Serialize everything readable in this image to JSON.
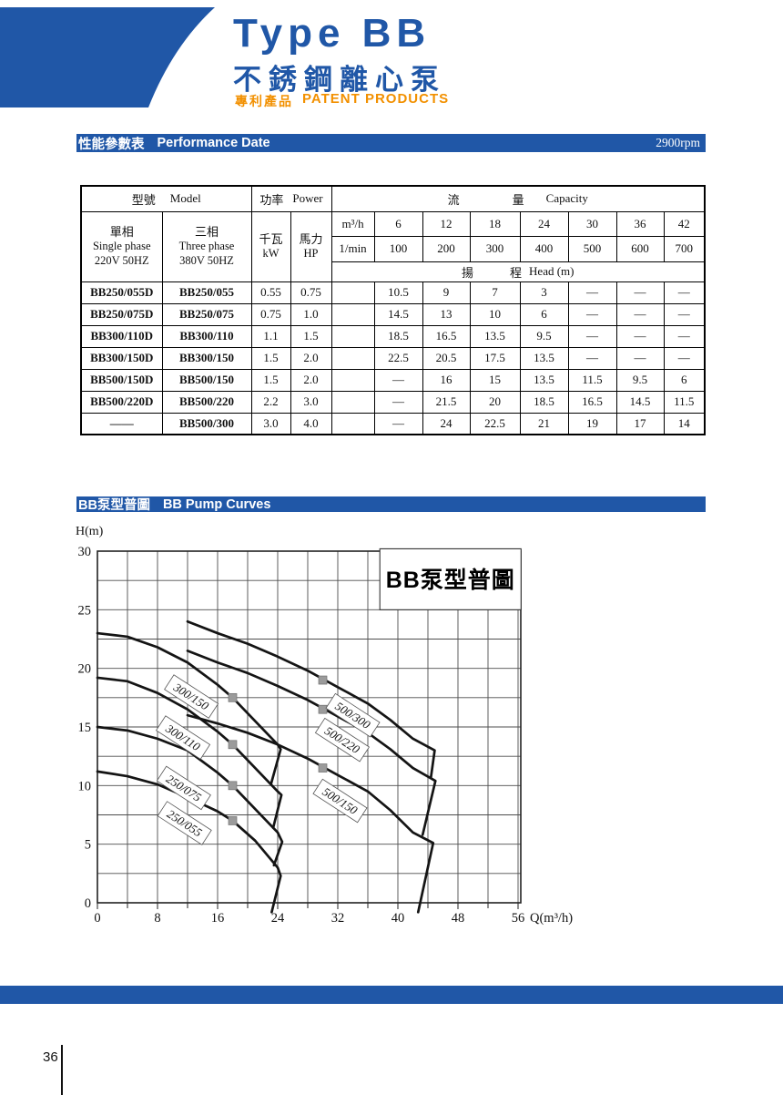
{
  "colors": {
    "blue": "#2057a7",
    "orange": "#f29000",
    "curve": "#141414",
    "grid": "#4d4d4d",
    "marker_fill": "#9b9b9b",
    "marker_edge": "#6f6f6f"
  },
  "header": {
    "title": "Type BB",
    "subtitle_cjk": "不銹鋼離心泵",
    "patent_cjk": "專利產品",
    "patent_en": "PATENT PRODUCTS"
  },
  "sections": {
    "performance": {
      "cjk": "性能參數表",
      "en": "Performance Date",
      "rpm": "2900rpm"
    },
    "curves": {
      "cjk": "BB泵型普圖",
      "en": "BB Pump Curves"
    }
  },
  "table": {
    "header": {
      "model_cjk": "型號",
      "model_en": "Model",
      "power_cjk": "功率",
      "power_en": "Power",
      "capacity_c1": "流",
      "capacity_c2": "量",
      "capacity_en": "Capacity",
      "single_phase": [
        "單相",
        "Single phase",
        "220V 50HZ"
      ],
      "three_phase": [
        "三相",
        "Three phase",
        "380V 50HZ"
      ],
      "kw": [
        "千瓦",
        "kW"
      ],
      "hp": [
        "馬力",
        "HP"
      ],
      "flow_m3h_label": "m³/h",
      "flow_lmin_label": "1/min",
      "flow_m3h": [
        "6",
        "12",
        "18",
        "24",
        "30",
        "36",
        "42"
      ],
      "flow_lmin": [
        "100",
        "200",
        "300",
        "400",
        "500",
        "600",
        "700"
      ],
      "head_c1": "揚",
      "head_c2": "程",
      "head_en": "Head (m)"
    },
    "rows": [
      {
        "single": "BB250/055D",
        "three": "BB250/055",
        "kw": "0.55",
        "hp": "0.75",
        "heads": [
          "10.5",
          "9",
          "7",
          "3",
          "—",
          "—",
          "—"
        ]
      },
      {
        "single": "BB250/075D",
        "three": "BB250/075",
        "kw": "0.75",
        "hp": "1.0",
        "heads": [
          "14.5",
          "13",
          "10",
          "6",
          "—",
          "—",
          "—"
        ]
      },
      {
        "single": "BB300/110D",
        "three": "BB300/110",
        "kw": "1.1",
        "hp": "1.5",
        "heads": [
          "18.5",
          "16.5",
          "13.5",
          "9.5",
          "—",
          "—",
          "—"
        ]
      },
      {
        "single": "BB300/150D",
        "three": "BB300/150",
        "kw": "1.5",
        "hp": "2.0",
        "heads": [
          "22.5",
          "20.5",
          "17.5",
          "13.5",
          "—",
          "—",
          "—"
        ]
      },
      {
        "single": "BB500/150D",
        "three": "BB500/150",
        "kw": "1.5",
        "hp": "2.0",
        "heads": [
          "—",
          "16",
          "15",
          "13.5",
          "11.5",
          "9.5",
          "6"
        ]
      },
      {
        "single": "BB500/220D",
        "three": "BB500/220",
        "kw": "2.2",
        "hp": "3.0",
        "heads": [
          "—",
          "21.5",
          "20",
          "18.5",
          "16.5",
          "14.5",
          "11.5"
        ]
      },
      {
        "single": "——",
        "three": "BB500/300",
        "kw": "3.0",
        "hp": "4.0",
        "heads": [
          "—",
          "24",
          "22.5",
          "21",
          "19",
          "17",
          "14"
        ]
      }
    ]
  },
  "chart_data": {
    "type": "line",
    "title": "BB泵型普圖",
    "xlabel": "Q(m³/h)",
    "ylabel": "H(m)",
    "xlim": [
      0,
      56
    ],
    "ylim": [
      0,
      30
    ],
    "x_major_ticks": [
      0,
      8,
      16,
      24,
      32,
      40,
      48,
      56
    ],
    "y_ticks": [
      0,
      5,
      10,
      15,
      20,
      25,
      30
    ],
    "x_grid_step": 4,
    "y_grid_step": 2.5,
    "grid": true,
    "legend_position": "labels-on-curves",
    "label_rotation_deg": 33,
    "series": [
      {
        "name": "250/055",
        "points": [
          [
            0,
            11.2
          ],
          [
            4,
            10.8
          ],
          [
            8,
            10.1
          ],
          [
            12,
            9
          ],
          [
            16,
            7.8
          ],
          [
            18,
            7
          ],
          [
            21,
            5.3
          ],
          [
            24,
            3
          ],
          [
            24.4,
            2.3
          ],
          [
            23.2,
            -0.8
          ]
        ],
        "marker": [
          18,
          7
        ],
        "label_pos": [
          11.6,
          6.8
        ]
      },
      {
        "name": "250/075",
        "points": [
          [
            0,
            15
          ],
          [
            4,
            14.7
          ],
          [
            8,
            14
          ],
          [
            12,
            13
          ],
          [
            16,
            11.1
          ],
          [
            18,
            10
          ],
          [
            21,
            8
          ],
          [
            24,
            6
          ],
          [
            24.6,
            5.2
          ],
          [
            23.5,
            3.2
          ]
        ],
        "marker": [
          18,
          10
        ],
        "label_pos": [
          11.5,
          9.8
        ]
      },
      {
        "name": "300/110",
        "points": [
          [
            0,
            19.2
          ],
          [
            4,
            18.9
          ],
          [
            8,
            17.9
          ],
          [
            12,
            16.5
          ],
          [
            16,
            14.6
          ],
          [
            18,
            13.5
          ],
          [
            21,
            11.5
          ],
          [
            24,
            9.5
          ],
          [
            24.5,
            9.2
          ],
          [
            23.4,
            6.4
          ]
        ],
        "marker": [
          18,
          13.5
        ],
        "label_pos": [
          11.4,
          14.1
        ]
      },
      {
        "name": "300/150",
        "points": [
          [
            0,
            23
          ],
          [
            4,
            22.7
          ],
          [
            8,
            21.8
          ],
          [
            12,
            20.5
          ],
          [
            16,
            18.6
          ],
          [
            18,
            17.5
          ],
          [
            21,
            15.5
          ],
          [
            24,
            13.5
          ],
          [
            24.4,
            13.1
          ],
          [
            23.1,
            10.1
          ]
        ],
        "marker": [
          18,
          17.5
        ],
        "label_pos": [
          12.5,
          17.6
        ]
      },
      {
        "name": "500/150",
        "points": [
          [
            12,
            16
          ],
          [
            16,
            15.3
          ],
          [
            20,
            14.5
          ],
          [
            24,
            13.5
          ],
          [
            28,
            12.3
          ],
          [
            32,
            10.9
          ],
          [
            36,
            9.5
          ],
          [
            39,
            7.9
          ],
          [
            42,
            6
          ],
          [
            44.7,
            5.1
          ],
          [
            42.7,
            -0.8
          ]
        ],
        "marker": [
          30,
          11.5
        ],
        "label_pos": [
          32.3,
          8.7
        ]
      },
      {
        "name": "500/220",
        "points": [
          [
            12,
            21.5
          ],
          [
            16,
            20.5
          ],
          [
            20,
            19.6
          ],
          [
            24,
            18.5
          ],
          [
            28,
            17.3
          ],
          [
            32,
            15.9
          ],
          [
            36,
            14.5
          ],
          [
            39,
            13.1
          ],
          [
            42,
            11.5
          ],
          [
            45,
            10.4
          ],
          [
            43.3,
            5.8
          ]
        ],
        "marker": [
          30,
          16.5
        ],
        "label_pos": [
          32.6,
          13.9
        ]
      },
      {
        "name": "500/300",
        "points": [
          [
            12,
            24
          ],
          [
            16,
            23
          ],
          [
            20,
            22.1
          ],
          [
            24,
            21
          ],
          [
            28,
            19.8
          ],
          [
            32,
            18.4
          ],
          [
            36,
            17
          ],
          [
            39,
            15.6
          ],
          [
            42,
            14
          ],
          [
            44.9,
            13
          ],
          [
            44.4,
            10.7
          ]
        ],
        "marker": [
          30,
          19
        ],
        "label_pos": [
          34,
          16
        ]
      }
    ],
    "inner_title_box": {
      "text": "BB泵型普圖",
      "x_range": [
        37.6,
        56.4
      ],
      "y_range": [
        25,
        30.2
      ]
    }
  },
  "footer": {
    "page_number": "36"
  }
}
